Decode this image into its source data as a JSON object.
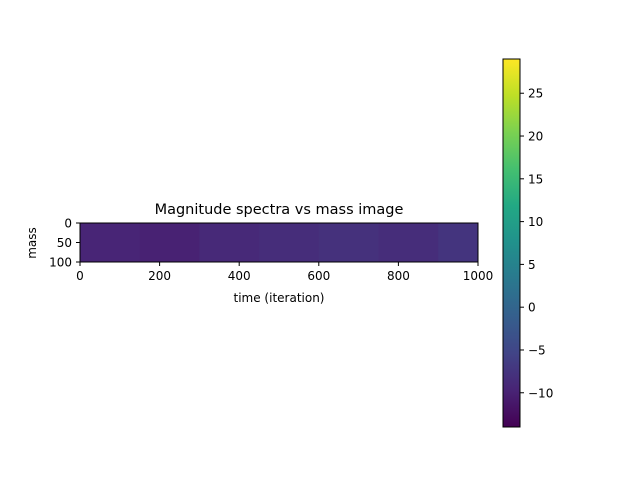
{
  "chart_data": {
    "type": "heatmap",
    "title": "Magnitude spectra vs mass image",
    "xlabel": "time (iteration)",
    "ylabel": "mass",
    "xlim": [
      0,
      1000
    ],
    "ylim": [
      100,
      0
    ],
    "xticks": [
      "0",
      "200",
      "400",
      "600",
      "800",
      "1000"
    ],
    "yticks": [
      "0",
      "50",
      "100"
    ],
    "colormap": "viridis",
    "colorbar": {
      "range": [
        -14,
        29
      ],
      "ticks": [
        "−10",
        "−5",
        "0",
        "5",
        "10",
        "15",
        "20",
        "25"
      ],
      "tick_values": [
        -10,
        -5,
        0,
        5,
        10,
        15,
        20,
        25
      ]
    },
    "bands": [
      {
        "x_start": 0,
        "x_end": 150,
        "value": -9.5
      },
      {
        "x_start": 150,
        "x_end": 300,
        "value": -10.0
      },
      {
        "x_start": 300,
        "x_end": 450,
        "value": -9.0
      },
      {
        "x_start": 450,
        "x_end": 600,
        "value": -8.5
      },
      {
        "x_start": 600,
        "x_end": 750,
        "value": -8.0
      },
      {
        "x_start": 750,
        "x_end": 900,
        "value": -8.5
      },
      {
        "x_start": 900,
        "x_end": 1000,
        "value": -7.5
      }
    ]
  }
}
